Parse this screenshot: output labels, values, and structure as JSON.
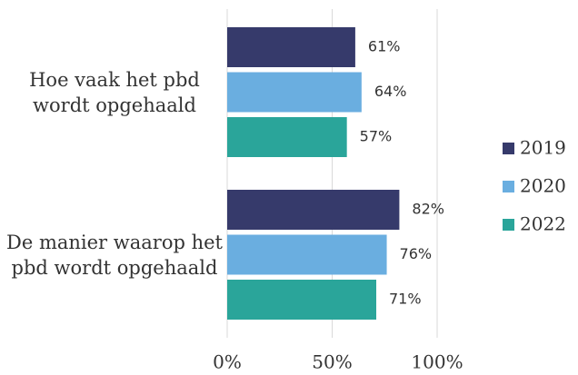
{
  "chart_data": {
    "type": "bar",
    "orientation": "horizontal",
    "categories": [
      "Hoe vaak het pbd wordt opgehaald",
      "De manier waarop het pbd wordt opgehaald"
    ],
    "series": [
      {
        "name": "2019",
        "color": "#363a6b",
        "values": [
          61,
          82
        ],
        "value_labels": [
          "61%",
          "82%"
        ]
      },
      {
        "name": "2020",
        "color": "#6aaee0",
        "values": [
          64,
          76
        ],
        "value_labels": [
          "64%",
          "76%"
        ]
      },
      {
        "name": "2022",
        "color": "#2aa59a",
        "values": [
          57,
          71
        ],
        "value_labels": [
          "57%",
          "71%"
        ]
      }
    ],
    "xlim": [
      0,
      100
    ],
    "xticks": [
      {
        "value": 0,
        "label": "0%"
      },
      {
        "value": 50,
        "label": "50%"
      },
      {
        "value": 100,
        "label": "100%"
      }
    ],
    "grid": true,
    "legend": "right"
  }
}
